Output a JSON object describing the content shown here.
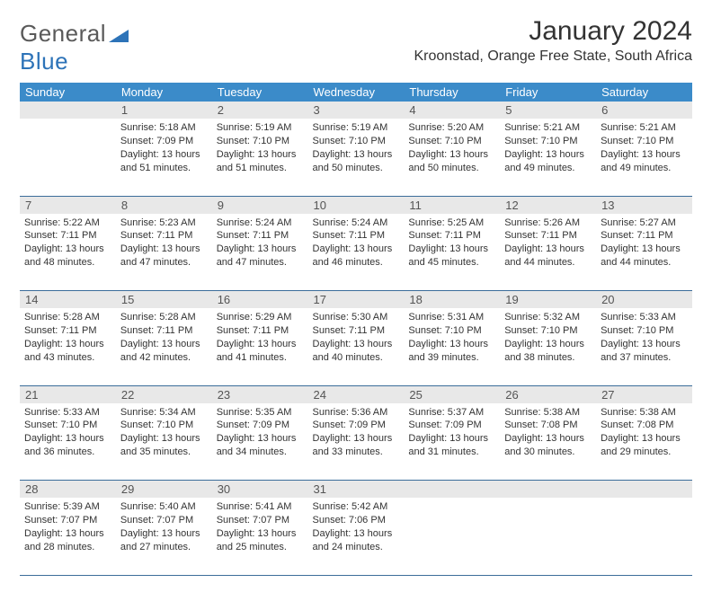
{
  "brand": {
    "name_a": "General",
    "name_b": "Blue"
  },
  "title": "January 2024",
  "location": "Kroonstad, Orange Free State, South Africa",
  "colors": {
    "header_bg": "#3b8bc9",
    "border": "#3b6d9a",
    "daynum_bg": "#e8e8e8",
    "brand_gray": "#5a5a5a",
    "brand_blue": "#2d73b8"
  },
  "weekdays": [
    "Sunday",
    "Monday",
    "Tuesday",
    "Wednesday",
    "Thursday",
    "Friday",
    "Saturday"
  ],
  "weeks": [
    [
      null,
      {
        "n": "1",
        "sr": "5:18 AM",
        "ss": "7:09 PM",
        "dl": "13 hours and 51 minutes."
      },
      {
        "n": "2",
        "sr": "5:19 AM",
        "ss": "7:10 PM",
        "dl": "13 hours and 51 minutes."
      },
      {
        "n": "3",
        "sr": "5:19 AM",
        "ss": "7:10 PM",
        "dl": "13 hours and 50 minutes."
      },
      {
        "n": "4",
        "sr": "5:20 AM",
        "ss": "7:10 PM",
        "dl": "13 hours and 50 minutes."
      },
      {
        "n": "5",
        "sr": "5:21 AM",
        "ss": "7:10 PM",
        "dl": "13 hours and 49 minutes."
      },
      {
        "n": "6",
        "sr": "5:21 AM",
        "ss": "7:10 PM",
        "dl": "13 hours and 49 minutes."
      }
    ],
    [
      {
        "n": "7",
        "sr": "5:22 AM",
        "ss": "7:11 PM",
        "dl": "13 hours and 48 minutes."
      },
      {
        "n": "8",
        "sr": "5:23 AM",
        "ss": "7:11 PM",
        "dl": "13 hours and 47 minutes."
      },
      {
        "n": "9",
        "sr": "5:24 AM",
        "ss": "7:11 PM",
        "dl": "13 hours and 47 minutes."
      },
      {
        "n": "10",
        "sr": "5:24 AM",
        "ss": "7:11 PM",
        "dl": "13 hours and 46 minutes."
      },
      {
        "n": "11",
        "sr": "5:25 AM",
        "ss": "7:11 PM",
        "dl": "13 hours and 45 minutes."
      },
      {
        "n": "12",
        "sr": "5:26 AM",
        "ss": "7:11 PM",
        "dl": "13 hours and 44 minutes."
      },
      {
        "n": "13",
        "sr": "5:27 AM",
        "ss": "7:11 PM",
        "dl": "13 hours and 44 minutes."
      }
    ],
    [
      {
        "n": "14",
        "sr": "5:28 AM",
        "ss": "7:11 PM",
        "dl": "13 hours and 43 minutes."
      },
      {
        "n": "15",
        "sr": "5:28 AM",
        "ss": "7:11 PM",
        "dl": "13 hours and 42 minutes."
      },
      {
        "n": "16",
        "sr": "5:29 AM",
        "ss": "7:11 PM",
        "dl": "13 hours and 41 minutes."
      },
      {
        "n": "17",
        "sr": "5:30 AM",
        "ss": "7:11 PM",
        "dl": "13 hours and 40 minutes."
      },
      {
        "n": "18",
        "sr": "5:31 AM",
        "ss": "7:10 PM",
        "dl": "13 hours and 39 minutes."
      },
      {
        "n": "19",
        "sr": "5:32 AM",
        "ss": "7:10 PM",
        "dl": "13 hours and 38 minutes."
      },
      {
        "n": "20",
        "sr": "5:33 AM",
        "ss": "7:10 PM",
        "dl": "13 hours and 37 minutes."
      }
    ],
    [
      {
        "n": "21",
        "sr": "5:33 AM",
        "ss": "7:10 PM",
        "dl": "13 hours and 36 minutes."
      },
      {
        "n": "22",
        "sr": "5:34 AM",
        "ss": "7:10 PM",
        "dl": "13 hours and 35 minutes."
      },
      {
        "n": "23",
        "sr": "5:35 AM",
        "ss": "7:09 PM",
        "dl": "13 hours and 34 minutes."
      },
      {
        "n": "24",
        "sr": "5:36 AM",
        "ss": "7:09 PM",
        "dl": "13 hours and 33 minutes."
      },
      {
        "n": "25",
        "sr": "5:37 AM",
        "ss": "7:09 PM",
        "dl": "13 hours and 31 minutes."
      },
      {
        "n": "26",
        "sr": "5:38 AM",
        "ss": "7:08 PM",
        "dl": "13 hours and 30 minutes."
      },
      {
        "n": "27",
        "sr": "5:38 AM",
        "ss": "7:08 PM",
        "dl": "13 hours and 29 minutes."
      }
    ],
    [
      {
        "n": "28",
        "sr": "5:39 AM",
        "ss": "7:07 PM",
        "dl": "13 hours and 28 minutes."
      },
      {
        "n": "29",
        "sr": "5:40 AM",
        "ss": "7:07 PM",
        "dl": "13 hours and 27 minutes."
      },
      {
        "n": "30",
        "sr": "5:41 AM",
        "ss": "7:07 PM",
        "dl": "13 hours and 25 minutes."
      },
      {
        "n": "31",
        "sr": "5:42 AM",
        "ss": "7:06 PM",
        "dl": "13 hours and 24 minutes."
      },
      null,
      null,
      null
    ]
  ],
  "labels": {
    "sunrise": "Sunrise:",
    "sunset": "Sunset:",
    "daylight": "Daylight:"
  }
}
